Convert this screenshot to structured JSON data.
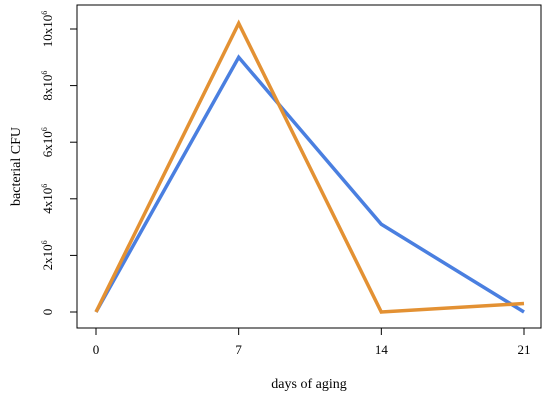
{
  "chart_data": {
    "type": "line",
    "title": "",
    "xlabel": "days of aging",
    "ylabel": "bacterial CFU",
    "x": [
      0,
      7,
      14,
      21
    ],
    "xticks": [
      "0",
      "7",
      "14",
      "21"
    ],
    "yticks": [
      {
        "value": 0,
        "base": "0",
        "exp": ""
      },
      {
        "value": 2000000,
        "base": "2x10",
        "exp": "6"
      },
      {
        "value": 4000000,
        "base": "4x10",
        "exp": "6"
      },
      {
        "value": 6000000,
        "base": "6x10",
        "exp": "6"
      },
      {
        "value": 8000000,
        "base": "8x10",
        "exp": "6"
      },
      {
        "value": 10000000,
        "base": "10x10",
        "exp": "6"
      }
    ],
    "xlim": [
      0,
      21
    ],
    "ylim": [
      0,
      10000000
    ],
    "grid": false,
    "series": [
      {
        "color": "#4a7fe0",
        "values": [
          0,
          9000000,
          3100000,
          0
        ]
      },
      {
        "color": "#e39133",
        "values": [
          0,
          10200000,
          0,
          300000
        ]
      }
    ]
  }
}
